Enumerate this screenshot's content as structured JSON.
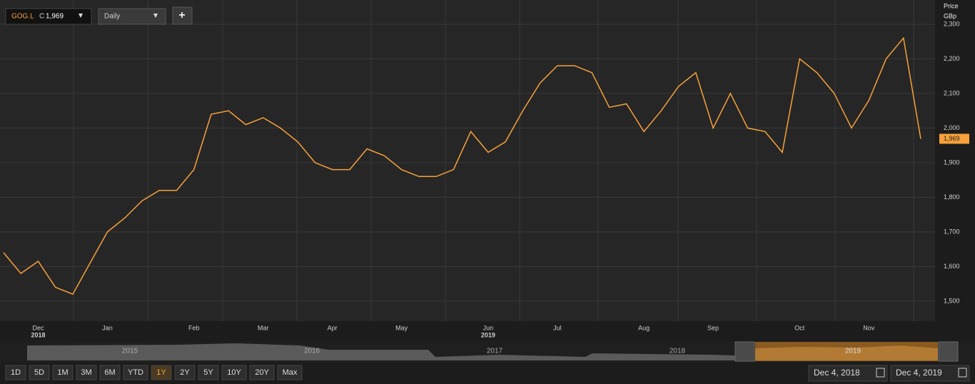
{
  "ui": {
    "symbol": "GOG.L",
    "close_prefix": "C",
    "close": "1,969",
    "interval": "Daily",
    "add": "+",
    "axis_title": "Price",
    "axis_unit": "GBp",
    "navigator_years": [
      "2015",
      "2016",
      "2017",
      "2018",
      "2019"
    ],
    "ranges": [
      "1D",
      "5D",
      "1M",
      "3M",
      "6M",
      "YTD",
      "1Y",
      "2Y",
      "5Y",
      "10Y",
      "20Y",
      "Max"
    ],
    "active_range": "1Y",
    "from_date": "Dec 4, 2018",
    "to_date": "Dec 4, 2019"
  },
  "chart_data": {
    "type": "line",
    "categories": [
      null,
      null,
      "Dec",
      null,
      null,
      null,
      "Jan",
      null,
      null,
      null,
      null,
      "Feb",
      null,
      null,
      null,
      "Mar",
      null,
      null,
      null,
      "Apr",
      null,
      null,
      null,
      "May",
      null,
      null,
      null,
      null,
      "Jun",
      null,
      null,
      null,
      "Jul",
      null,
      null,
      null,
      null,
      "Aug",
      null,
      null,
      null,
      "Sep",
      null,
      null,
      null,
      null,
      "Oct",
      null,
      null,
      null,
      "Nov",
      null,
      null,
      null
    ],
    "years": [
      null,
      null,
      "2018",
      null,
      null,
      null,
      null,
      null,
      null,
      null,
      null,
      null,
      null,
      null,
      null,
      null,
      null,
      null,
      null,
      null,
      null,
      null,
      null,
      null,
      null,
      null,
      null,
      null,
      "2019",
      null,
      null,
      null,
      null,
      null,
      null,
      null,
      null,
      null,
      null,
      null,
      null,
      null,
      null,
      null,
      null,
      null,
      null,
      null,
      null,
      null,
      null,
      null,
      null,
      null
    ],
    "series": [
      {
        "name": "GOG.L",
        "color": "#f7a13b",
        "values": [
          1640,
          1580,
          1615,
          1540,
          1520,
          1610,
          1700,
          1740,
          1790,
          1820,
          1820,
          1880,
          2040,
          2050,
          2010,
          2030,
          2000,
          1960,
          1900,
          1880,
          1880,
          1940,
          1920,
          1880,
          1860,
          1860,
          1880,
          1990,
          1930,
          1960,
          2050,
          2130,
          2180,
          2180,
          2160,
          2060,
          2070,
          1990,
          2050,
          2120,
          2160,
          2000,
          2100,
          2000,
          1990,
          1930,
          2200,
          2160,
          2100,
          2000,
          2080,
          2200,
          2260,
          1969
        ]
      }
    ],
    "last_value_label": "1,969",
    "ylim": [
      1442,
      2370
    ],
    "yticks": [
      {
        "value": 1500,
        "label": "1,500"
      },
      {
        "value": 1600,
        "label": "1,600"
      },
      {
        "value": 1700,
        "label": "1,700"
      },
      {
        "value": 1800,
        "label": "1,800"
      },
      {
        "value": 1900,
        "label": "1,900"
      },
      {
        "value": 2000,
        "label": "2,000"
      },
      {
        "value": 2100,
        "label": "2,100"
      },
      {
        "value": 2200,
        "label": "2,200"
      },
      {
        "value": 2300,
        "label": "2,300"
      }
    ],
    "grid": true
  }
}
